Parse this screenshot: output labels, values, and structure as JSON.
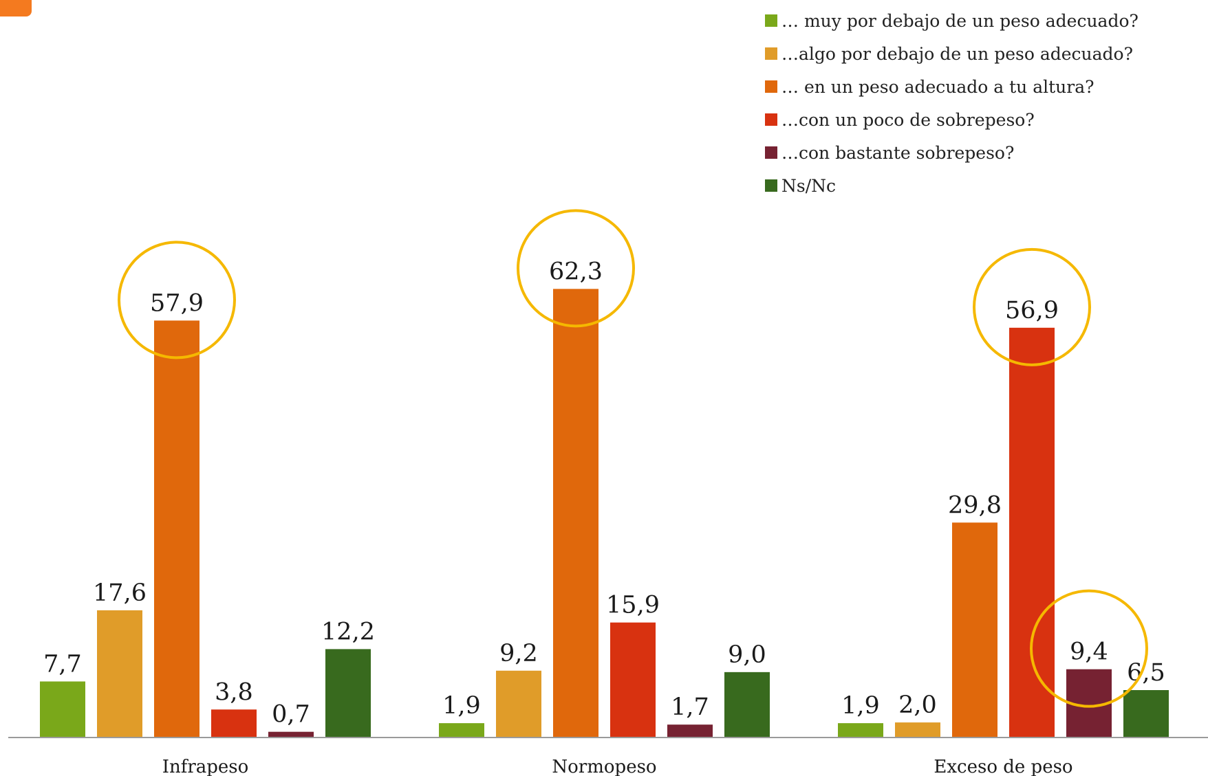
{
  "colors": {
    "tab": "#f47a1f",
    "highlight_ring": "#f5b800",
    "axis": "#9a9a9a",
    "text": "#1a1a1a"
  },
  "chart_data": {
    "type": "bar",
    "categories": [
      "Infrapeso",
      "Normopeso",
      "Exceso de peso"
    ],
    "series": [
      {
        "name": "… muy por debajo de un peso adecuado?",
        "color": "#7aa81a",
        "values": [
          7.7,
          1.9,
          1.9
        ],
        "labels": [
          "7,7",
          "1,9",
          "1,9"
        ]
      },
      {
        "name": "…algo por debajo de un peso adecuado?",
        "color": "#e09c29",
        "values": [
          17.6,
          9.2,
          2.0
        ],
        "labels": [
          "17,6",
          "9,2",
          "2,0"
        ]
      },
      {
        "name": "… en un peso adecuado a tu altura?",
        "color": "#e0680c",
        "values": [
          57.9,
          62.3,
          29.8
        ],
        "labels": [
          "57,9",
          "62,3",
          "29,8"
        ]
      },
      {
        "name": "…con un poco de sobrepeso?",
        "color": "#d83210",
        "values": [
          3.8,
          15.9,
          56.9
        ],
        "labels": [
          "3,8",
          "15,9",
          "56,9"
        ]
      },
      {
        "name": "…con bastante sobrepeso?",
        "color": "#762232",
        "values": [
          0.7,
          1.7,
          9.4
        ],
        "labels": [
          "0,7",
          "1,7",
          "9,4"
        ]
      },
      {
        "name": "Ns/Nc",
        "color": "#386a1e",
        "values": [
          12.2,
          9.0,
          6.5
        ],
        "labels": [
          "12,2",
          "9,0",
          "6,5"
        ]
      }
    ],
    "highlighted": [
      {
        "category": 0,
        "series": 2
      },
      {
        "category": 1,
        "series": 2
      },
      {
        "category": 2,
        "series": 3
      },
      {
        "category": 2,
        "series": 4
      }
    ],
    "ylim": [
      0,
      70
    ],
    "grid": false,
    "legend_position": "top-right"
  }
}
